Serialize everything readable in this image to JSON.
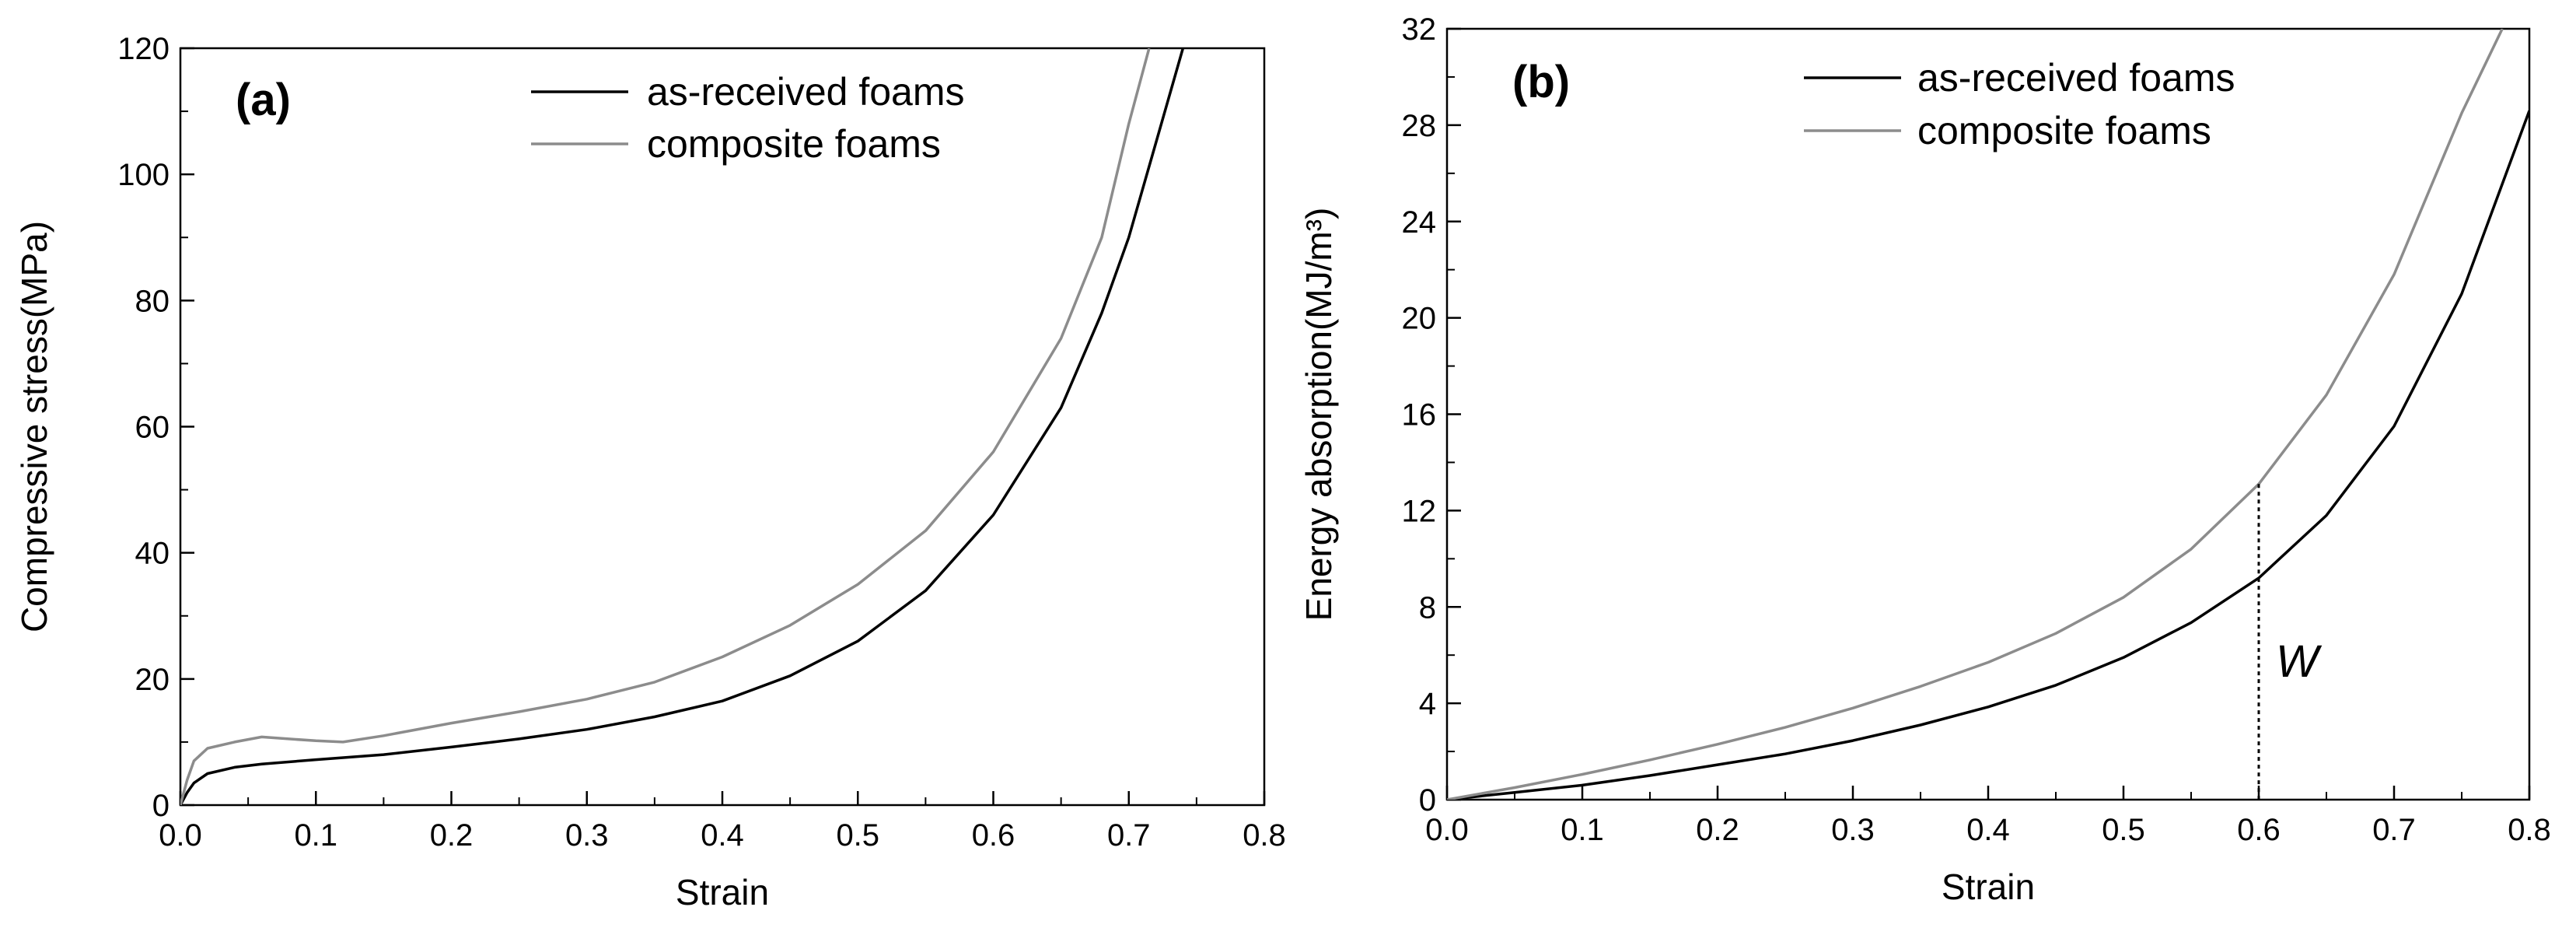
{
  "chart_data": [
    {
      "type": "line",
      "panel_label": "(a)",
      "xlabel": "Strain",
      "ylabel": "Compressive stress(MPa)",
      "xlim": [
        0.0,
        0.8
      ],
      "ylim": [
        0,
        120
      ],
      "xticks": [
        "0.0",
        "0.1",
        "0.2",
        "0.3",
        "0.4",
        "0.5",
        "0.6",
        "0.7",
        "0.8"
      ],
      "yticks": [
        "0",
        "20",
        "40",
        "60",
        "80",
        "100",
        "120"
      ],
      "legend_position": "top-right",
      "series": [
        {
          "name": "as-received foams",
          "color": "#000000",
          "x": [
            0.0,
            0.005,
            0.01,
            0.02,
            0.04,
            0.06,
            0.1,
            0.15,
            0.2,
            0.25,
            0.3,
            0.35,
            0.4,
            0.45,
            0.5,
            0.55,
            0.6,
            0.65,
            0.68,
            0.7,
            0.72,
            0.74
          ],
          "y": [
            0,
            2,
            3.5,
            5,
            6,
            6.5,
            7.2,
            8,
            9.2,
            10.5,
            12,
            14,
            16.5,
            20.5,
            26,
            34,
            46,
            63,
            78,
            90,
            105,
            120
          ]
        },
        {
          "name": "composite foams",
          "color": "#8c8c8c",
          "x": [
            0.0,
            0.005,
            0.01,
            0.02,
            0.04,
            0.06,
            0.08,
            0.1,
            0.12,
            0.15,
            0.2,
            0.25,
            0.3,
            0.35,
            0.4,
            0.45,
            0.5,
            0.55,
            0.6,
            0.65,
            0.68,
            0.7,
            0.715
          ],
          "y": [
            0,
            4,
            7,
            9,
            10,
            10.8,
            10.5,
            10.2,
            10,
            11,
            13,
            14.8,
            16.8,
            19.5,
            23.5,
            28.5,
            35,
            43.5,
            56,
            74,
            90,
            108,
            120
          ]
        }
      ]
    },
    {
      "type": "line",
      "panel_label": "(b)",
      "xlabel": "Strain",
      "ylabel": "Energy absorption(MJ/m³)",
      "xlim": [
        0.0,
        0.8
      ],
      "ylim": [
        0,
        32
      ],
      "xticks": [
        "0.0",
        "0.1",
        "0.2",
        "0.3",
        "0.4",
        "0.5",
        "0.6",
        "0.7",
        "0.8"
      ],
      "yticks": [
        "0",
        "4",
        "8",
        "12",
        "16",
        "20",
        "24",
        "28",
        "32"
      ],
      "legend_position": "top",
      "annotation": {
        "text": "W",
        "x": 0.6,
        "y_from": 9.2,
        "y_to": 13.1
      },
      "series": [
        {
          "name": "as-received foams",
          "color": "#000000",
          "x": [
            0.0,
            0.05,
            0.1,
            0.15,
            0.2,
            0.25,
            0.3,
            0.35,
            0.4,
            0.45,
            0.5,
            0.55,
            0.6,
            0.65,
            0.7,
            0.75,
            0.8
          ],
          "y": [
            0,
            0.3,
            0.6,
            1.0,
            1.45,
            1.9,
            2.45,
            3.1,
            3.85,
            4.75,
            5.9,
            7.35,
            9.2,
            11.8,
            15.5,
            21.0,
            28.6
          ]
        },
        {
          "name": "composite foams",
          "color": "#8c8c8c",
          "x": [
            0.0,
            0.05,
            0.1,
            0.15,
            0.2,
            0.25,
            0.3,
            0.35,
            0.4,
            0.45,
            0.5,
            0.55,
            0.6,
            0.65,
            0.7,
            0.75,
            0.78
          ],
          "y": [
            0,
            0.5,
            1.05,
            1.65,
            2.3,
            3.0,
            3.8,
            4.7,
            5.7,
            6.9,
            8.4,
            10.4,
            13.1,
            16.8,
            21.8,
            28.5,
            32
          ]
        }
      ]
    }
  ]
}
